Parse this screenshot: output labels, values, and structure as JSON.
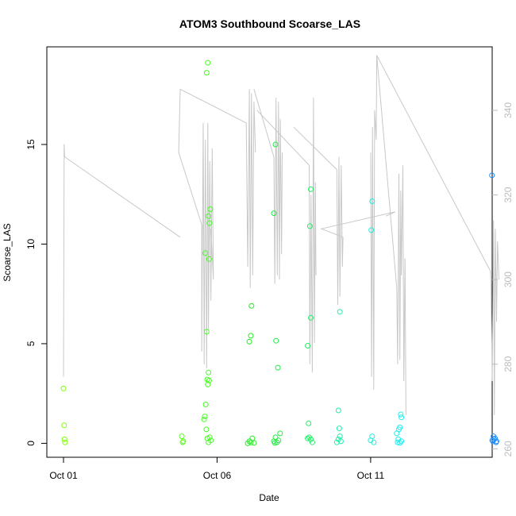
{
  "chart_data": {
    "type": "scatter",
    "title": "ATOM3 Southbound Scoarse_LAS",
    "xlabel": "Date",
    "ylabel": "Scoarse_LAS",
    "xlim": [
      0,
      14.5
    ],
    "ylim": [
      -0.7,
      19.9
    ],
    "y2lim": [
      258,
      355
    ],
    "x_ticks": [
      {
        "label": "Oct 01",
        "value": 0
      },
      {
        "label": "Oct 06",
        "value": 5
      },
      {
        "label": "Oct 11",
        "value": 10
      }
    ],
    "y_ticks": [
      "0",
      "5",
      "10",
      "15"
    ],
    "y2_ticks": [
      "260",
      "280",
      "300",
      "320",
      "340"
    ],
    "right_axis_color": "#bbbbbb",
    "plot_area_border": "#000000",
    "point_series": [
      {
        "day": 0,
        "color": "#7fff00",
        "points": [
          [
            0.0,
            2.75
          ],
          [
            0.02,
            0.9
          ],
          [
            0.03,
            0.2
          ],
          [
            0.05,
            0.05
          ]
        ]
      },
      {
        "day": 3.9,
        "color": "#5cff1a",
        "points": [
          [
            3.85,
            0.35
          ],
          [
            3.88,
            0.05
          ],
          [
            3.9,
            0.1
          ]
        ]
      },
      {
        "day": 4.7,
        "color": "#44ff22",
        "points": [
          [
            4.62,
            9.55
          ],
          [
            4.66,
            18.6
          ],
          [
            4.7,
            19.1
          ],
          [
            4.72,
            11.4
          ],
          [
            4.75,
            11.05
          ],
          [
            4.78,
            11.75
          ],
          [
            4.74,
            9.25
          ],
          [
            4.66,
            5.6
          ],
          [
            4.63,
            1.95
          ],
          [
            4.6,
            1.35
          ],
          [
            4.58,
            1.2
          ],
          [
            4.65,
            0.7
          ],
          [
            4.68,
            3.2
          ],
          [
            4.72,
            3.55
          ],
          [
            4.7,
            2.95
          ],
          [
            4.74,
            3.15
          ],
          [
            4.76,
            0.3
          ],
          [
            4.68,
            0.25
          ],
          [
            4.72,
            0.05
          ],
          [
            4.8,
            0.15
          ]
        ]
      },
      {
        "day": 6.0,
        "color": "#22ee22",
        "points": [
          [
            6.05,
            5.1
          ],
          [
            6.1,
            5.4
          ],
          [
            6.12,
            6.9
          ],
          [
            6.05,
            0.1
          ],
          [
            6.1,
            0.05
          ],
          [
            6.15,
            0.25
          ],
          [
            6.2,
            0.02
          ],
          [
            6.0,
            0.0
          ]
        ]
      },
      {
        "day": 6.9,
        "color": "#22ee44",
        "points": [
          [
            6.85,
            11.55
          ],
          [
            6.9,
            15.0
          ],
          [
            6.92,
            5.15
          ],
          [
            6.98,
            3.8
          ],
          [
            6.85,
            0.1
          ],
          [
            6.9,
            0.3
          ],
          [
            6.95,
            0.05
          ],
          [
            7.0,
            0.15
          ],
          [
            7.05,
            0.5
          ],
          [
            6.88,
            0.02
          ]
        ]
      },
      {
        "day": 8.0,
        "color": "#22ee66",
        "points": [
          [
            7.95,
            4.9
          ],
          [
            8.05,
            6.3
          ],
          [
            8.02,
            10.9
          ],
          [
            8.05,
            12.75
          ],
          [
            7.98,
            1.0
          ],
          [
            7.95,
            0.25
          ],
          [
            8.0,
            0.3
          ],
          [
            8.05,
            0.2
          ],
          [
            8.1,
            0.05
          ]
        ]
      },
      {
        "day": 8.9,
        "color": "#22eeaa",
        "points": [
          [
            8.95,
            1.65
          ],
          [
            9.0,
            6.6
          ],
          [
            8.98,
            0.75
          ],
          [
            8.9,
            0.05
          ],
          [
            8.95,
            0.2
          ],
          [
            9.0,
            0.35
          ],
          [
            9.03,
            0.1
          ]
        ]
      },
      {
        "day": 10.0,
        "color": "#22eedd",
        "points": [
          [
            10.05,
            12.15
          ],
          [
            10.02,
            10.7
          ],
          [
            10.0,
            0.15
          ],
          [
            10.05,
            0.35
          ],
          [
            10.1,
            0.05
          ]
        ]
      },
      {
        "day": 10.9,
        "color": "#22eeee",
        "points": [
          [
            10.85,
            0.5
          ],
          [
            10.9,
            0.2
          ],
          [
            10.95,
            0.8
          ],
          [
            11.0,
            1.3
          ],
          [
            10.98,
            1.45
          ],
          [
            10.92,
            0.7
          ],
          [
            10.88,
            0.05
          ],
          [
            11.0,
            0.1
          ],
          [
            10.95,
            0.02
          ]
        ]
      },
      {
        "day": 14.0,
        "color": "#1e90ff",
        "points": [
          [
            13.95,
            13.45
          ],
          [
            14.0,
            0.35
          ],
          [
            13.98,
            0.1
          ],
          [
            14.05,
            0.25
          ],
          [
            14.08,
            0.05
          ],
          [
            14.02,
            0.2
          ],
          [
            14.1,
            0.1
          ],
          [
            13.96,
            0.15
          ]
        ]
      }
    ],
    "line_series": [
      {
        "name": "",
        "color": "#c8c8c8",
        "values_note": "",
        "segments": [
          [
            [
              0.0,
              277
            ],
            [
              0.02,
              332
            ],
            [
              0.04,
              329
            ],
            [
              3.8,
              310
            ]
          ],
          [
            [
              3.8,
              345
            ],
            [
              3.75,
              330
            ],
            [
              4.5,
              313
            ],
            [
              4.5,
              283
            ],
            [
              4.55,
              337
            ],
            [
              4.58,
              280
            ],
            [
              4.62,
              333
            ],
            [
              4.66,
              279
            ],
            [
              4.7,
              337
            ],
            [
              4.72,
              288
            ],
            [
              4.76,
              328
            ],
            [
              4.8,
              295
            ],
            [
              4.84,
              331
            ],
            [
              4.88,
              300
            ],
            [
              4.8,
              312
            ]
          ],
          [
            [
              3.8,
              345
            ],
            [
              5.95,
              337
            ],
            [
              6.0,
              303
            ],
            [
              6.05,
              345
            ],
            [
              6.08,
              298
            ],
            [
              6.12,
              344
            ],
            [
              6.16,
              301
            ],
            [
              6.2,
              342
            ],
            [
              6.25,
              330
            ]
          ],
          [
            [
              6.2,
              345
            ],
            [
              6.85,
              329
            ],
            [
              6.88,
              299
            ],
            [
              6.92,
              343
            ],
            [
              6.96,
              301
            ],
            [
              7.0,
              342
            ],
            [
              7.03,
              300
            ],
            [
              7.06,
              338
            ],
            [
              7.1,
              306
            ],
            [
              7.12,
              330
            ]
          ],
          [
            [
              6.3,
              340
            ],
            [
              8.0,
              327
            ],
            [
              8.02,
              280
            ],
            [
              8.06,
              320
            ],
            [
              8.1,
              278
            ],
            [
              8.14,
              343
            ],
            [
              8.17,
              285
            ],
            [
              8.2,
              323
            ],
            [
              8.22,
              301
            ]
          ],
          [
            [
              7.5,
              336
            ],
            [
              8.9,
              326
            ],
            [
              8.93,
              294
            ],
            [
              8.97,
              329
            ],
            [
              9.0,
              296
            ],
            [
              9.04,
              327
            ],
            [
              9.08,
              303
            ],
            [
              9.1,
              310
            ],
            [
              8.4,
              312
            ],
            [
              10.8,
              316
            ],
            [
              10.5,
              315
            ]
          ],
          [
            [
              10.0,
              330
            ],
            [
              10.03,
              277
            ],
            [
              10.06,
              336
            ],
            [
              10.1,
              274
            ],
            [
              10.13,
              340
            ],
            [
              10.18,
              333
            ],
            [
              10.2,
              353
            ],
            [
              10.85,
              298
            ],
            [
              10.88,
              280
            ],
            [
              10.92,
              325
            ],
            [
              10.95,
              281
            ],
            [
              10.98,
              321
            ],
            [
              11.0,
              301
            ],
            [
              11.05,
              327
            ],
            [
              11.08,
              276
            ],
            [
              11.12,
              305
            ],
            [
              11.15,
              268
            ]
          ],
          [
            [
              10.2,
              353
            ],
            [
              13.9,
              302
            ],
            [
              13.92,
              298
            ],
            [
              13.96,
              276
            ],
            [
              14.0,
              314
            ],
            [
              14.03,
              268
            ],
            [
              14.06,
              312
            ],
            [
              14.1,
              290
            ],
            [
              14.13,
              309
            ],
            [
              14.18,
              300
            ]
          ]
        ]
      }
    ],
    "grid": false,
    "legend": "none"
  }
}
